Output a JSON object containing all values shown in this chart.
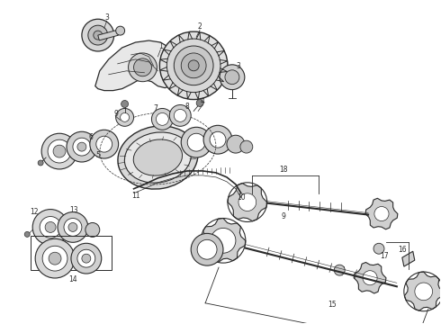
{
  "background_color": "#ffffff",
  "line_color": "#2a2a2a",
  "fig_width": 4.9,
  "fig_height": 3.6,
  "dpi": 100
}
